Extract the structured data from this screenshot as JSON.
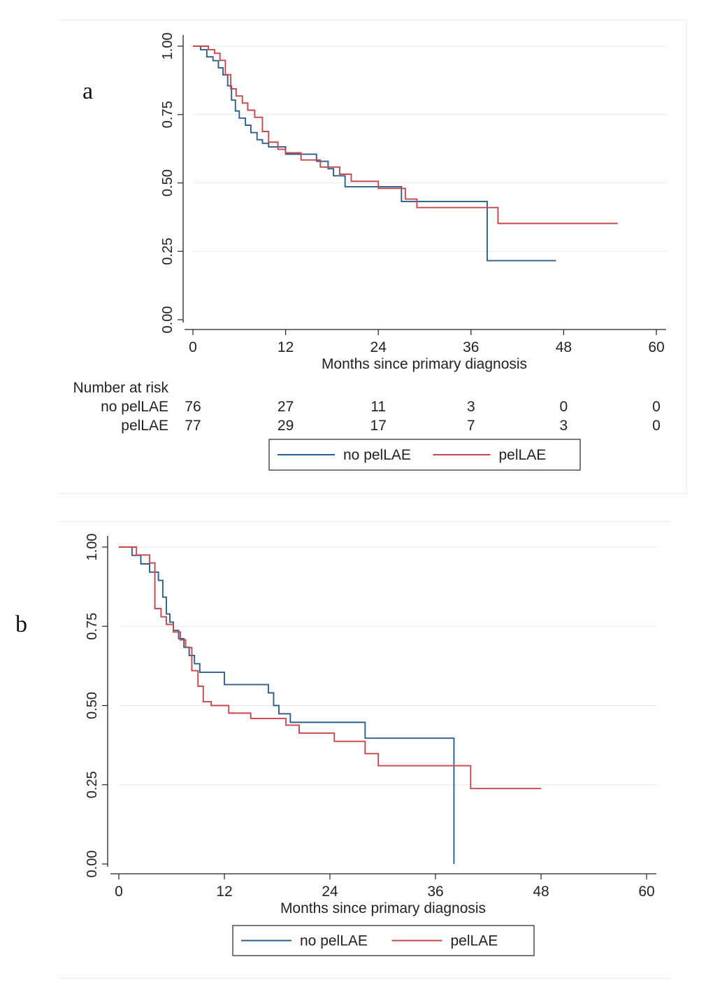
{
  "panels": [
    {
      "panel_label": "a"
    },
    {
      "panel_label": "b"
    }
  ],
  "chart_data": [
    {
      "type": "line",
      "subtype": "step",
      "panel": "a",
      "xlabel": "Months since primary diagnosis",
      "ylabel": "",
      "xlim": [
        0,
        60
      ],
      "ylim": [
        0,
        1
      ],
      "xticks": [
        "0",
        "12",
        "24",
        "36",
        "48",
        "60"
      ],
      "yticks": [
        "0.00",
        "0.25",
        "0.50",
        "0.75",
        "1.00"
      ],
      "xtick_values": [
        0,
        12,
        24,
        36,
        48,
        60
      ],
      "ytick_values": [
        0,
        0.25,
        0.5,
        0.75,
        1.0
      ],
      "grid": true,
      "legend_position": "bottom",
      "series": [
        {
          "name": "no pelLAE",
          "color": "#2e5f8a",
          "x": [
            0,
            1,
            1.8,
            2.6,
            3.3,
            3.9,
            4.5,
            5.0,
            5.5,
            6.0,
            6.8,
            7.5,
            8.3,
            9.0,
            9.8,
            12.0,
            16.0,
            17.5,
            18.2,
            19.7,
            22.0,
            27.0,
            28.0,
            38.0,
            38.1,
            47.0
          ],
          "y": [
            1.0,
            0.987,
            0.961,
            0.947,
            0.921,
            0.895,
            0.855,
            0.803,
            0.763,
            0.737,
            0.711,
            0.684,
            0.658,
            0.645,
            0.632,
            0.605,
            0.579,
            0.552,
            0.526,
            0.486,
            0.486,
            0.432,
            0.432,
            0.432,
            0.216,
            0.216
          ]
        },
        {
          "name": "pelLAE",
          "color": "#c8464e",
          "x": [
            0,
            2.0,
            2.8,
            3.5,
            4.2,
            4.9,
            5.6,
            6.4,
            7.1,
            8.0,
            9.0,
            9.8,
            11.0,
            12.0,
            14.0,
            16.5,
            19.0,
            20.5,
            24.0,
            27.5,
            29.0,
            39.5,
            55.0
          ],
          "y": [
            1.0,
            0.987,
            0.974,
            0.948,
            0.896,
            0.844,
            0.818,
            0.792,
            0.766,
            0.74,
            0.688,
            0.649,
            0.623,
            0.61,
            0.584,
            0.558,
            0.532,
            0.506,
            0.48,
            0.441,
            0.41,
            0.352,
            0.352
          ]
        }
      ],
      "risk_table": {
        "title": "Number at risk",
        "times": [
          0,
          12,
          24,
          36,
          48,
          60
        ],
        "rows": [
          {
            "label": "no pelLAE",
            "values": [
              "76",
              "27",
              "11",
              "3",
              "0",
              "0"
            ]
          },
          {
            "label": "pelLAE",
            "values": [
              "77",
              "29",
              "17",
              "7",
              "3",
              "0"
            ]
          }
        ]
      }
    },
    {
      "type": "line",
      "subtype": "step",
      "panel": "b",
      "xlabel": "Months since primary diagnosis",
      "ylabel": "",
      "xlim": [
        0,
        60
      ],
      "ylim": [
        0,
        1
      ],
      "xticks": [
        "0",
        "12",
        "24",
        "36",
        "48",
        "60"
      ],
      "yticks": [
        "0.00",
        "0.25",
        "0.50",
        "0.75",
        "1.00"
      ],
      "xtick_values": [
        0,
        12,
        24,
        36,
        48,
        60
      ],
      "ytick_values": [
        0,
        0.25,
        0.5,
        0.75,
        1.0
      ],
      "grid": true,
      "legend_position": "bottom",
      "series": [
        {
          "name": "no pelLAE",
          "color": "#2e5f8a",
          "x": [
            0,
            1.5,
            2.5,
            3.5,
            4.5,
            5.0,
            5.4,
            5.8,
            6.2,
            6.8,
            7.4,
            8.0,
            8.6,
            9.2,
            12.0,
            17.0,
            17.6,
            18.2,
            19.5,
            28.0,
            38.0,
            38.1
          ],
          "y": [
            1.0,
            0.974,
            0.947,
            0.921,
            0.895,
            0.842,
            0.789,
            0.763,
            0.737,
            0.711,
            0.684,
            0.658,
            0.632,
            0.605,
            0.566,
            0.54,
            0.5,
            0.474,
            0.447,
            0.397,
            0.397,
            0.0
          ]
        },
        {
          "name": "pelLAE",
          "color": "#c8464e",
          "x": [
            0,
            2.0,
            3.5,
            4.1,
            4.8,
            5.4,
            6.2,
            7.0,
            7.6,
            8.3,
            9.0,
            9.6,
            10.5,
            12.5,
            15.0,
            19.0,
            20.5,
            24.5,
            28.0,
            29.5,
            40.0,
            48.0
          ],
          "y": [
            1.0,
            0.975,
            0.95,
            0.806,
            0.78,
            0.756,
            0.732,
            0.707,
            0.683,
            0.61,
            0.561,
            0.512,
            0.5,
            0.476,
            0.459,
            0.438,
            0.413,
            0.387,
            0.348,
            0.31,
            0.238,
            0.238
          ]
        }
      ],
      "risk_table": null
    }
  ]
}
